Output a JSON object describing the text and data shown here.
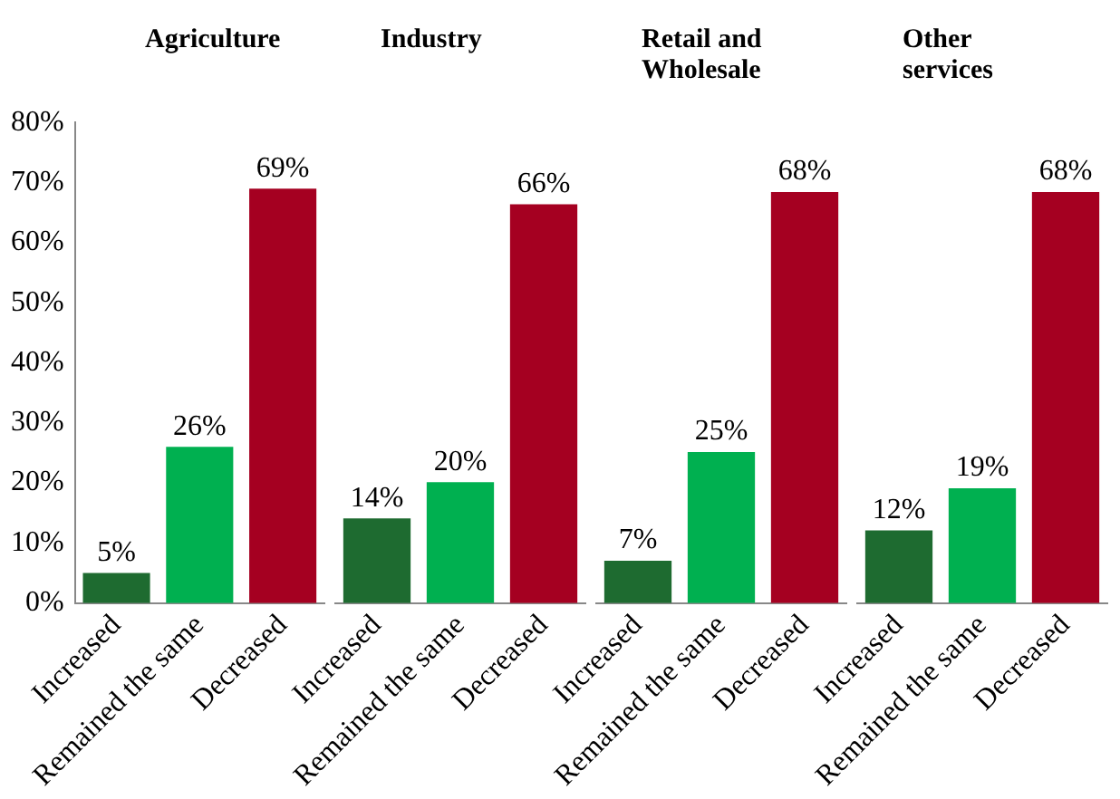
{
  "chart_data": [
    {
      "type": "bar",
      "title": "Agriculture",
      "categories": [
        "Increased",
        "Remained the same",
        "Decreased"
      ],
      "values": [
        5,
        26,
        69
      ],
      "colors": [
        "#1e6b30",
        "#00b050",
        "#a50021"
      ],
      "value_labels": [
        "5%",
        "26%",
        "69%"
      ],
      "ylim": [
        0,
        80
      ],
      "yticks": [
        {
          "value": 0,
          "label": "0%"
        },
        {
          "value": 10,
          "label": "10%"
        },
        {
          "value": 20,
          "label": "20%"
        },
        {
          "value": 30,
          "label": "30%"
        },
        {
          "value": 40,
          "label": "40%"
        },
        {
          "value": 50,
          "label": "50%"
        },
        {
          "value": 60,
          "label": "60%"
        },
        {
          "value": 70,
          "label": "70%"
        },
        {
          "value": 80,
          "label": "80%"
        }
      ],
      "grid": false,
      "legend": false
    },
    {
      "type": "bar",
      "title": "Industry",
      "categories": [
        "Increased",
        "Remained the same",
        "Decreased"
      ],
      "values": [
        14,
        20,
        66
      ],
      "colors": [
        "#1e6b30",
        "#00b050",
        "#a50021"
      ],
      "value_labels": [
        "14%",
        "20%",
        "66%"
      ],
      "ylim": [
        0,
        80
      ],
      "tick_labels": "x",
      "grid": false,
      "legend": false
    },
    {
      "type": "bar",
      "title": "Retail and Wholesale",
      "categories": [
        "Increased",
        "Remained the same",
        "Decreased"
      ],
      "values": [
        7,
        25,
        68
      ],
      "colors": [
        "#1e6b30",
        "#00b050",
        "#a50021"
      ],
      "value_labels": [
        "7%",
        "25%",
        "68%"
      ],
      "ylim": [
        0,
        80
      ],
      "tick_labels": "x",
      "grid": false,
      "legend": false
    },
    {
      "type": "bar",
      "title": "Other services",
      "categories": [
        "Increased",
        "Remained the same",
        "Decreased"
      ],
      "values": [
        12,
        19,
        68
      ],
      "colors": [
        "#1e6b30",
        "#00b050",
        "#a50021"
      ],
      "value_labels": [
        "12%",
        "19%",
        "68%"
      ],
      "ylim": [
        0,
        80
      ],
      "tick_labels": "x",
      "grid": false,
      "legend": false
    }
  ]
}
